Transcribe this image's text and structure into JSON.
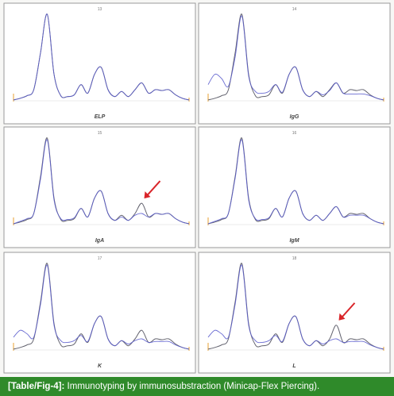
{
  "figure": {
    "caption": {
      "ref": "[Table/Fig-4]:",
      "text": "Immunotyping by immunosubstraction (Minicap-Flex Piercing)."
    },
    "colors": {
      "reference_trace": "#5a5a66",
      "sample_trace": "#5a5ccd",
      "arrow": "#d9252a",
      "baseline_marker": "#e8a030",
      "caption_bg": "#2f8a2a",
      "panel_border": "#9a9a9a"
    }
  },
  "chart_data": [
    {
      "type": "line",
      "title": "13",
      "xlabel": "ELP",
      "series": [
        {
          "values": [
            0,
            2,
            5,
            12,
            55,
            100,
            30,
            5,
            4,
            6,
            18,
            8,
            30,
            38,
            12,
            4,
            10,
            4,
            12,
            20,
            8,
            12,
            11,
            12,
            6,
            2,
            0
          ]
        },
        {
          "values": [
            0,
            2,
            5,
            12,
            55,
            100,
            30,
            5,
            4,
            6,
            18,
            8,
            30,
            38,
            12,
            4,
            10,
            4,
            12,
            20,
            8,
            12,
            11,
            12,
            6,
            2,
            0
          ]
        }
      ],
      "arrow": false
    },
    {
      "type": "line",
      "title": "14",
      "xlabel": "IgG",
      "series": [
        {
          "values": [
            0,
            2,
            5,
            12,
            55,
            100,
            30,
            5,
            4,
            6,
            18,
            8,
            30,
            38,
            12,
            4,
            10,
            4,
            12,
            20,
            8,
            12,
            11,
            12,
            6,
            2,
            0
          ]
        },
        {
          "values": [
            18,
            30,
            25,
            16,
            50,
            98,
            28,
            10,
            8,
            10,
            18,
            9,
            30,
            38,
            12,
            4,
            10,
            6,
            11,
            20,
            8,
            7,
            7,
            7,
            5,
            2,
            0
          ]
        }
      ],
      "arrow": false
    },
    {
      "type": "line",
      "title": "15",
      "xlabel": "IgA",
      "series": [
        {
          "values": [
            0,
            2,
            5,
            12,
            55,
            100,
            30,
            5,
            4,
            6,
            18,
            8,
            30,
            38,
            12,
            4,
            10,
            4,
            12,
            24,
            8,
            12,
            11,
            12,
            6,
            2,
            0
          ]
        },
        {
          "values": [
            0,
            3,
            6,
            12,
            52,
            98,
            28,
            6,
            5,
            7,
            18,
            8,
            30,
            38,
            12,
            4,
            8,
            4,
            10,
            12,
            8,
            12,
            11,
            12,
            6,
            2,
            0
          ]
        }
      ],
      "arrow": true
    },
    {
      "type": "line",
      "title": "16",
      "xlabel": "IgM",
      "series": [
        {
          "values": [
            0,
            2,
            5,
            12,
            55,
            100,
            30,
            5,
            4,
            6,
            18,
            8,
            30,
            38,
            12,
            4,
            10,
            4,
            12,
            20,
            8,
            12,
            11,
            12,
            6,
            2,
            0
          ]
        },
        {
          "values": [
            0,
            3,
            6,
            12,
            53,
            98,
            28,
            6,
            5,
            7,
            18,
            8,
            30,
            38,
            12,
            4,
            10,
            4,
            12,
            20,
            8,
            10,
            10,
            10,
            6,
            2,
            0
          ]
        }
      ],
      "arrow": false
    },
    {
      "type": "line",
      "title": "17",
      "xlabel": "K",
      "series": [
        {
          "values": [
            0,
            2,
            5,
            12,
            55,
            100,
            30,
            5,
            4,
            6,
            18,
            8,
            30,
            38,
            12,
            4,
            10,
            4,
            12,
            22,
            8,
            12,
            11,
            12,
            6,
            2,
            0
          ]
        },
        {
          "values": [
            14,
            22,
            18,
            14,
            52,
            98,
            28,
            10,
            8,
            10,
            16,
            9,
            30,
            38,
            12,
            4,
            10,
            6,
            10,
            12,
            8,
            9,
            9,
            9,
            5,
            2,
            0
          ]
        }
      ],
      "arrow": false
    },
    {
      "type": "line",
      "title": "18",
      "xlabel": "L",
      "series": [
        {
          "values": [
            0,
            2,
            5,
            12,
            55,
            100,
            30,
            5,
            4,
            6,
            18,
            8,
            30,
            38,
            12,
            4,
            10,
            4,
            12,
            28,
            8,
            12,
            11,
            12,
            6,
            2,
            0
          ]
        },
        {
          "values": [
            14,
            22,
            18,
            14,
            52,
            98,
            28,
            10,
            8,
            10,
            16,
            9,
            30,
            38,
            12,
            4,
            10,
            6,
            10,
            12,
            8,
            9,
            9,
            9,
            5,
            2,
            0
          ]
        }
      ],
      "arrow": true
    }
  ]
}
